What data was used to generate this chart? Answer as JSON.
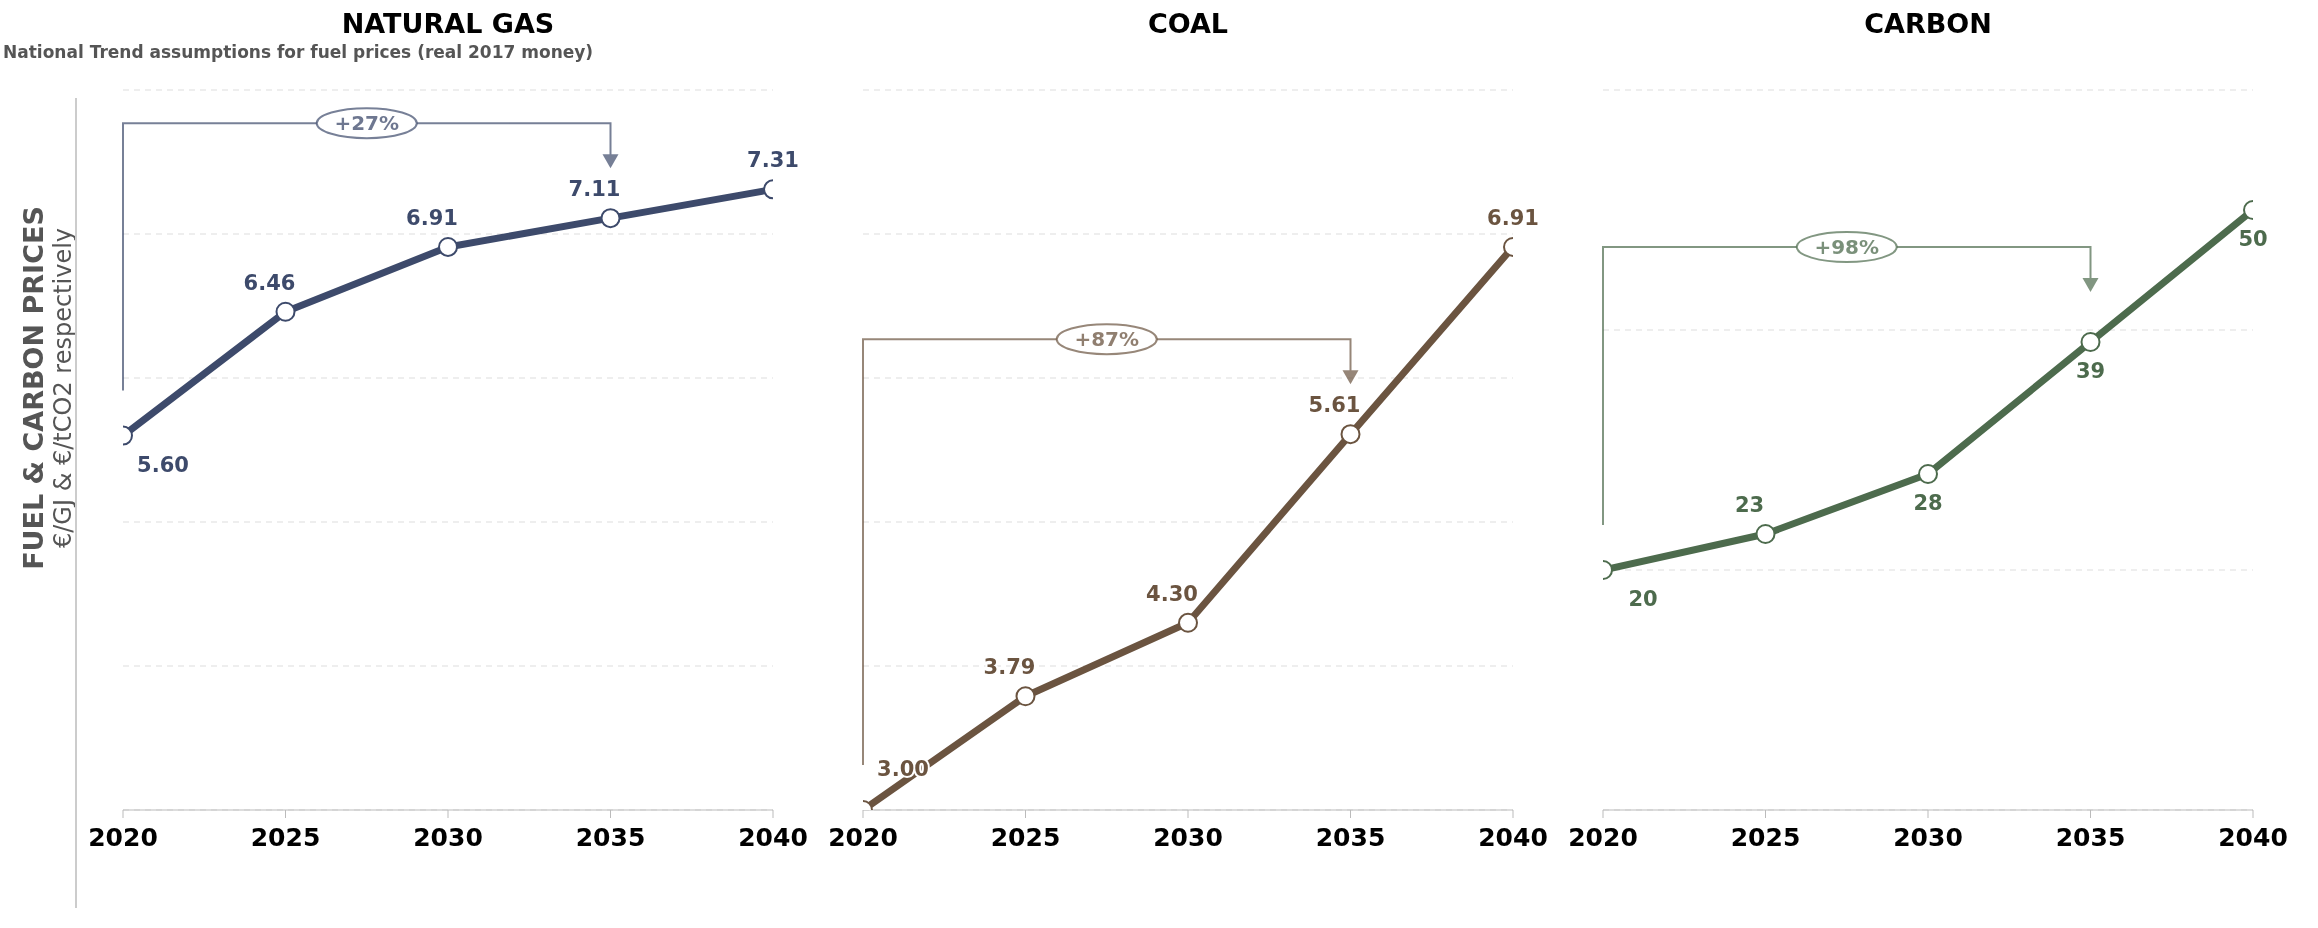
{
  "chart_data": [
    {
      "type": "line",
      "title": "NATURAL GAS",
      "subtitle": "National Trend assumptions for fuel prices (real 2017 money)",
      "ylabel": "FUEL & CARBON PRICES\n€/GJ & €/tCO2 respectively",
      "x": [
        2020,
        2025,
        2030,
        2035,
        2040
      ],
      "xlim": [
        2020,
        2040
      ],
      "xticks": [
        2020,
        2025,
        2030,
        2035,
        2040
      ],
      "ylim": [
        3,
        8
      ],
      "yticks": [
        {
          "value": 3,
          "label": null
        },
        {
          "value": 4,
          "label": null
        },
        {
          "value": 5,
          "label": null
        },
        {
          "value": 6,
          "label": null
        },
        {
          "value": 7,
          "label": null
        },
        {
          "value": 8,
          "label": null
        }
      ],
      "tick_labels": "x",
      "grid": "y",
      "marker": "circle",
      "line_style": "solid",
      "color": "#3d4a6b",
      "values": [
        5.6,
        6.46,
        6.91,
        7.11,
        7.31
      ],
      "value_labels": [
        "5.60",
        "6.46",
        "6.91",
        "7.11",
        "7.31"
      ],
      "annotations": [
        "+27%"
      ]
    },
    {
      "type": "line",
      "title": "COAL",
      "x": [
        2020,
        2025,
        2030,
        2035,
        2040
      ],
      "xlim": [
        2020,
        2040
      ],
      "xticks": [
        2020,
        2025,
        2030,
        2035,
        2040
      ],
      "ylim": [
        3,
        8
      ],
      "yticks": [
        {
          "value": 3,
          "label": null
        },
        {
          "value": 4,
          "label": null
        },
        {
          "value": 5,
          "label": null
        },
        {
          "value": 6,
          "label": null
        },
        {
          "value": 7,
          "label": null
        },
        {
          "value": 8,
          "label": null
        }
      ],
      "tick_labels": "x",
      "grid": "y",
      "marker": "circle",
      "line_style": "solid",
      "color": "#6b5440",
      "values": [
        3.0,
        3.79,
        4.3,
        5.61,
        6.91
      ],
      "value_labels": [
        "3.00",
        "3.79",
        "4.30",
        "5.61",
        "6.91"
      ],
      "annotations": [
        "+87%"
      ]
    },
    {
      "type": "line",
      "title": "CARBON",
      "x": [
        2020,
        2025,
        2030,
        2035,
        2040
      ],
      "xlim": [
        2020,
        2040
      ],
      "xticks": [
        2020,
        2025,
        2030,
        2035,
        2040
      ],
      "ylim": [
        0,
        60
      ],
      "yticks": [
        {
          "value": 0,
          "label": null
        },
        {
          "value": 20,
          "label": null
        },
        {
          "value": 40,
          "label": null
        },
        {
          "value": 60,
          "label": null
        }
      ],
      "tick_labels": "x",
      "grid": "y",
      "marker": "circle",
      "line_style": "solid",
      "color": "#4d6b4d",
      "values": [
        20,
        23,
        28,
        39,
        50
      ],
      "data_labels": true,
      "annotations": [
        "+98%"
      ]
    }
  ]
}
